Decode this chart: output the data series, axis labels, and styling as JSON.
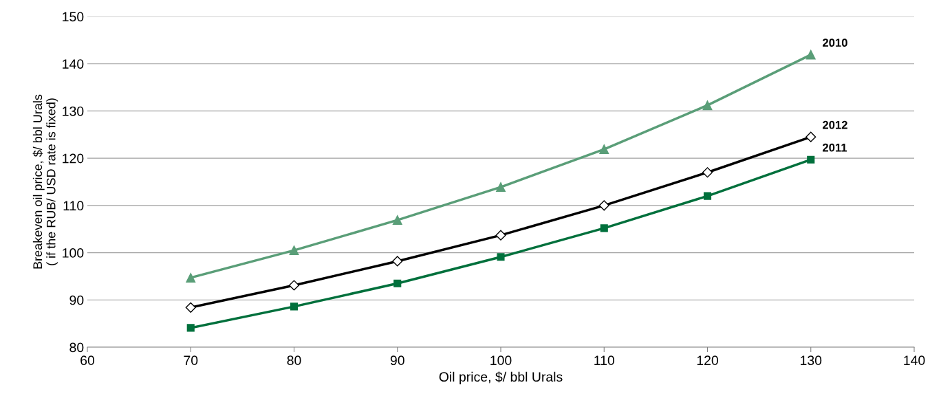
{
  "chart_data": {
    "type": "line",
    "xlabel": "Oil price, $/ bbl Urals",
    "ylabel": "Breakeven oil price, $/ bbl Urals\n( if the RUB/ USD rate is fixed)",
    "x": [
      70,
      80,
      90,
      100,
      110,
      120,
      130
    ],
    "series": [
      {
        "name": "2010",
        "color": "#5a9e78",
        "marker": "triangle",
        "values": [
          94.7,
          100.5,
          106.9,
          113.9,
          121.9,
          131.2,
          141.9
        ]
      },
      {
        "name": "2012",
        "color": "#000000",
        "marker": "diamond",
        "values": [
          88.4,
          93.1,
          98.2,
          103.7,
          110.0,
          117.0,
          124.5
        ]
      },
      {
        "name": "2011",
        "color": "#00703c",
        "marker": "square",
        "values": [
          84.1,
          88.6,
          93.5,
          99.1,
          105.2,
          112.0,
          119.7
        ]
      }
    ],
    "xlim": [
      60,
      140
    ],
    "xticks": [
      60,
      70,
      80,
      90,
      100,
      110,
      120,
      130,
      140
    ],
    "ylim": [
      80,
      150
    ],
    "yticks": [
      80,
      90,
      100,
      110,
      120,
      130,
      140,
      150
    ],
    "grid": "y",
    "legend": false,
    "line_style": "solid"
  }
}
